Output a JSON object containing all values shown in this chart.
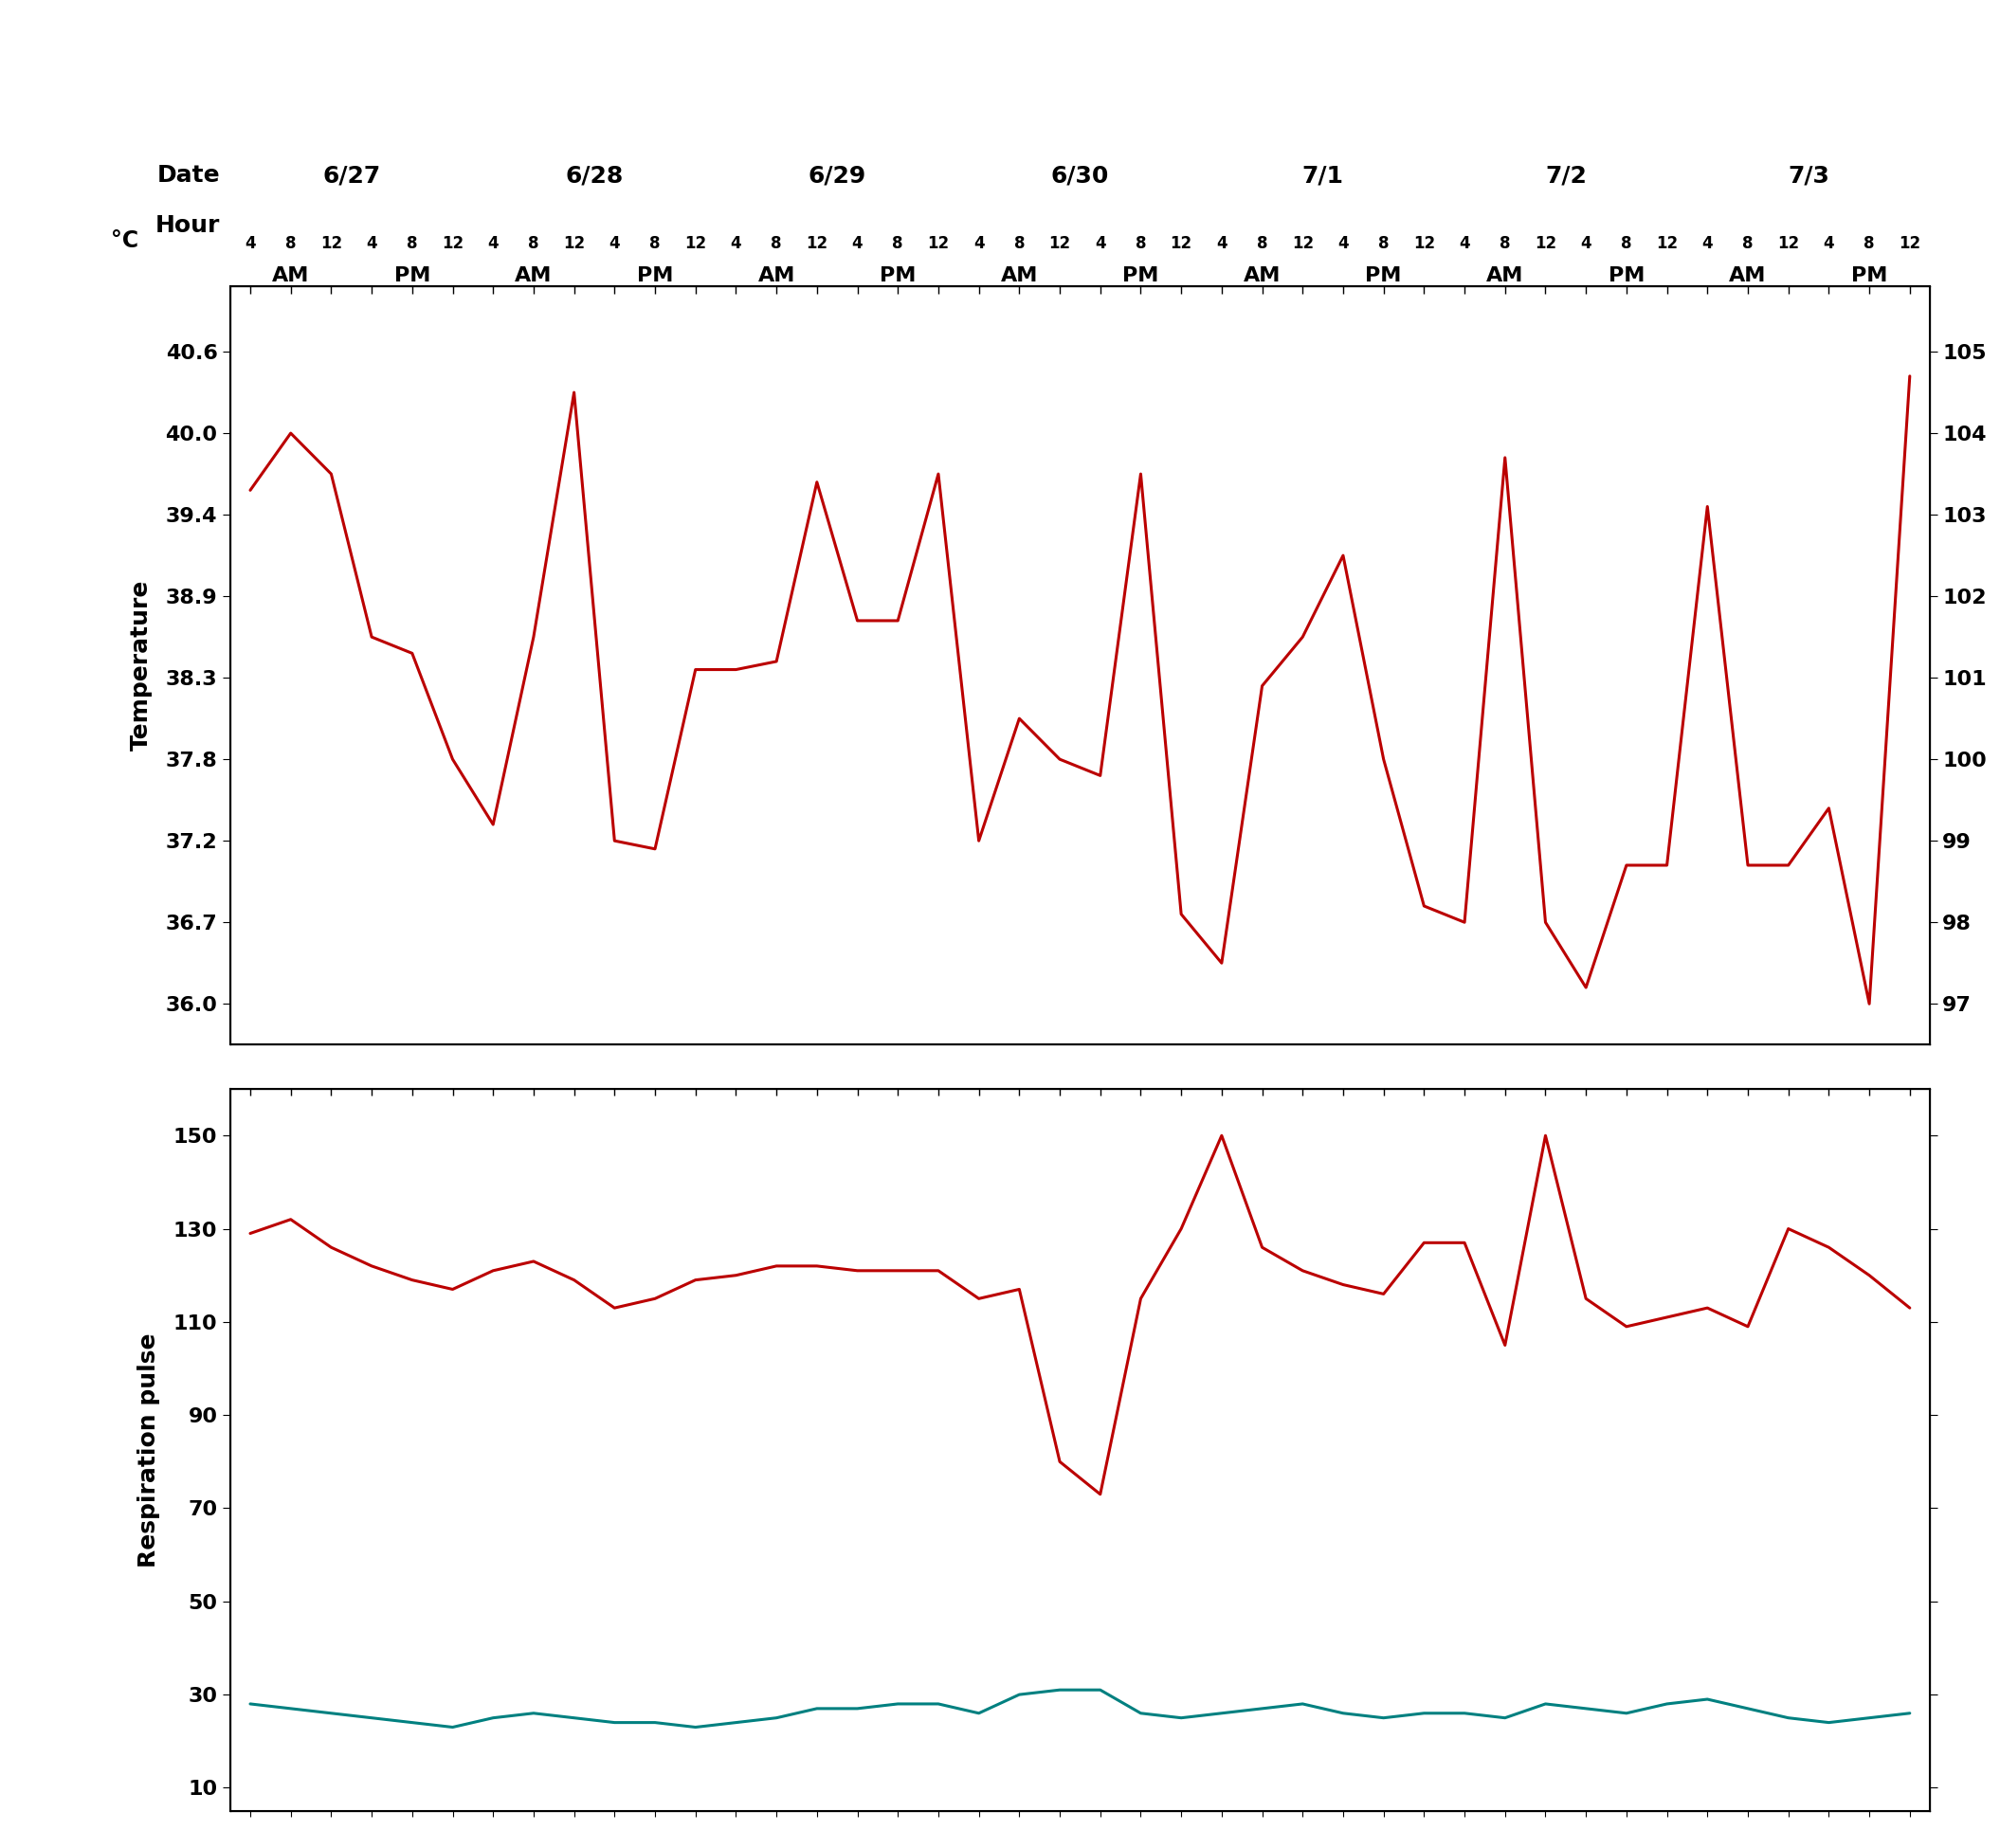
{
  "temp_color": "#bb0000",
  "pulse_color": "#bb0000",
  "resp_color": "#008080",
  "dates": [
    "6/27",
    "6/28",
    "6/29",
    "6/30",
    "7/1",
    "7/2",
    "7/3"
  ],
  "temp_celsius_ticks": [
    "36.0",
    "36.7",
    "37.2",
    "37.8",
    "38.3",
    "38.9",
    "39.4",
    "40.0",
    "40.6"
  ],
  "temp_f_ticks": [
    97,
    98,
    99,
    100,
    101,
    102,
    103,
    104,
    105
  ],
  "pulse_yticks": [
    10,
    30,
    50,
    70,
    90,
    110,
    130,
    150
  ],
  "temp_ylim_f": [
    96.5,
    105.8
  ],
  "pulse_ylim": [
    5,
    160
  ],
  "n_points": 42,
  "temp_f_data": [
    103.3,
    104.0,
    103.5,
    101.5,
    101.3,
    100.0,
    99.2,
    101.5,
    104.5,
    99.0,
    98.9,
    101.1,
    101.1,
    101.2,
    103.4,
    101.7,
    101.7,
    103.5,
    99.0,
    100.5,
    100.0,
    99.8,
    103.5,
    98.1,
    97.5,
    100.9,
    101.5,
    102.5,
    100.0,
    98.2,
    98.0,
    103.7,
    98.0,
    97.2,
    98.7,
    98.7,
    103.1,
    98.7,
    98.7,
    99.4,
    97.0,
    104.7
  ],
  "pulse_data": [
    129,
    132,
    126,
    122,
    119,
    117,
    121,
    123,
    119,
    113,
    115,
    119,
    120,
    122,
    122,
    121,
    121,
    121,
    115,
    117,
    80,
    73,
    115,
    130,
    150,
    126,
    121,
    118,
    116,
    127,
    127,
    105,
    150,
    115,
    109,
    111,
    113,
    109,
    130,
    126,
    120,
    113
  ],
  "resp_data": [
    28,
    27,
    26,
    25,
    24,
    23,
    25,
    26,
    25,
    24,
    24,
    23,
    24,
    25,
    27,
    27,
    28,
    28,
    26,
    30,
    31,
    31,
    26,
    25,
    26,
    27,
    28,
    26,
    25,
    26,
    26,
    25,
    28,
    27,
    26,
    28,
    29,
    27,
    25,
    24,
    25,
    26
  ]
}
